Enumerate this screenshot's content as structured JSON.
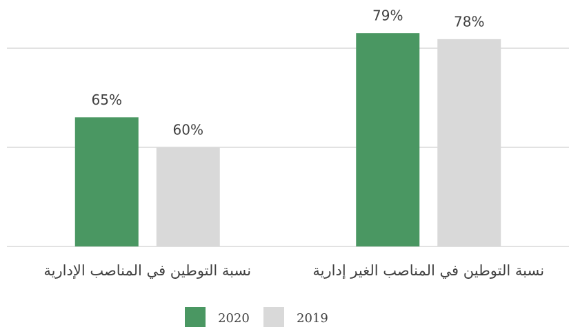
{
  "chart_data": {
    "type": "bar",
    "categories": [
      "نسبة التوطين في المناصب الإدارية",
      "نسبة التوطين في المناصب الغير إدارية"
    ],
    "series": [
      {
        "name": "2020",
        "color": "#4a9762",
        "values": [
          65,
          79
        ],
        "value_labels": [
          "65%",
          "79%"
        ]
      },
      {
        "name": "2019",
        "color": "#d9d9d9",
        "values": [
          60,
          78
        ],
        "value_labels": [
          "60%",
          "78%"
        ]
      }
    ],
    "ylim": [
      43.5,
      81
    ],
    "yticks": [
      43.5,
      60,
      76.5
    ],
    "grid": true
  }
}
